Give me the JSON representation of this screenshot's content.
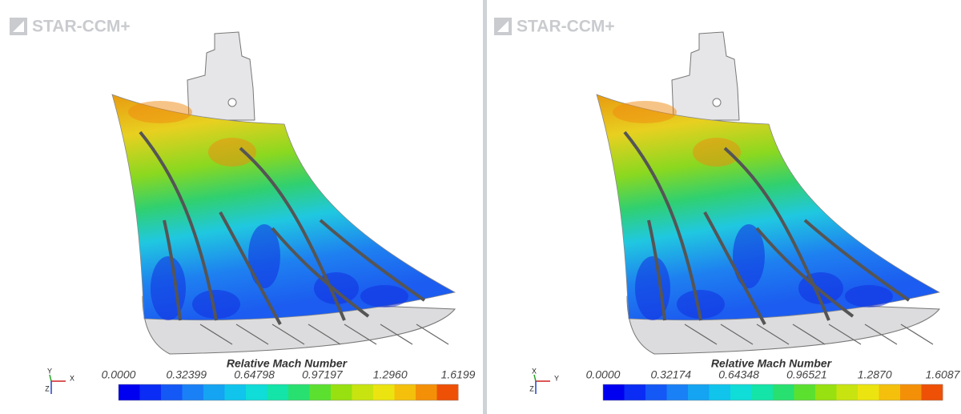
{
  "panels": [
    {
      "logo": "STAR-CCM+",
      "colorbar": {
        "title": "Relative Mach Number",
        "ticks": [
          "0.0000",
          "0.32399",
          "0.64798",
          "0.97197",
          "1.2960",
          "1.6199"
        ]
      },
      "triad": {
        "labels": [
          "Y",
          "X",
          "Z"
        ]
      }
    },
    {
      "logo": "STAR-CCM+",
      "colorbar": {
        "title": "Relative Mach Number",
        "ticks": [
          "0.0000",
          "0.32174",
          "0.64348",
          "0.96521",
          "1.2870",
          "1.6087"
        ]
      },
      "triad": {
        "labels": [
          "X",
          "Y",
          "Z"
        ]
      }
    }
  ]
}
